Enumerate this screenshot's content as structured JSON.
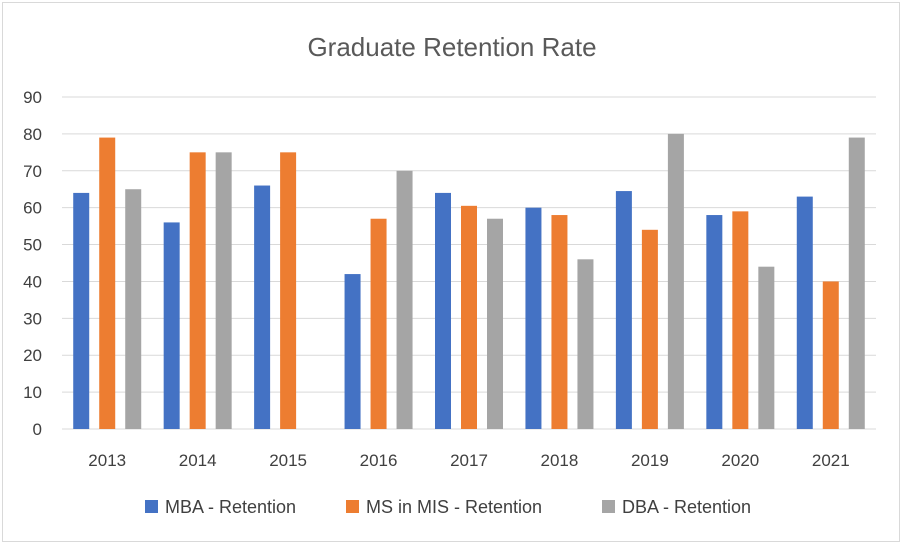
{
  "chart_data": {
    "type": "bar",
    "title": "Graduate Retention Rate",
    "xlabel": "",
    "ylabel": "",
    "categories": [
      "2013",
      "2014",
      "2015",
      "2016",
      "2017",
      "2018",
      "2019",
      "2020",
      "2021"
    ],
    "ylim": [
      0,
      90
    ],
    "yticks": [
      0,
      10,
      20,
      30,
      40,
      50,
      60,
      70,
      80,
      90
    ],
    "grid": true,
    "legend_position": "bottom",
    "series": [
      {
        "name": "MBA - Retention",
        "color": "#4472c4",
        "values": [
          64,
          56,
          66,
          42,
          64,
          60,
          64.5,
          58,
          63
        ]
      },
      {
        "name": "MS in MIS - Retention",
        "color": "#ed7d31",
        "values": [
          79,
          75,
          75,
          57,
          60.5,
          58,
          54,
          59,
          40
        ]
      },
      {
        "name": "DBA - Retention",
        "color": "#a5a5a5",
        "values": [
          65,
          75,
          null,
          70,
          57,
          46,
          80,
          44,
          79
        ]
      }
    ]
  }
}
